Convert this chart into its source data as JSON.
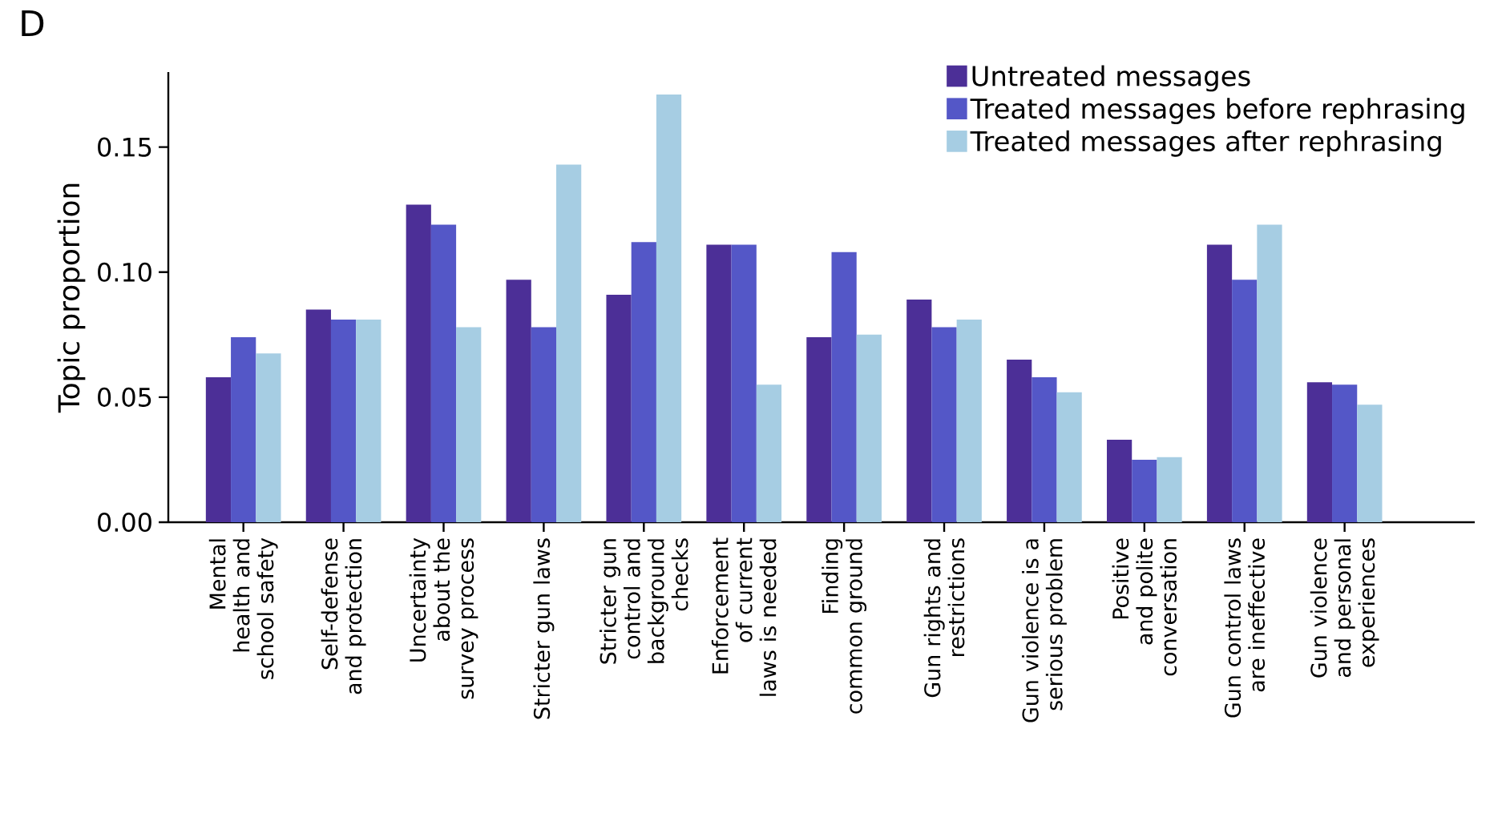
{
  "chart_data": {
    "type": "bar",
    "ylabel": "Topic proportion",
    "annotations": [
      "D"
    ],
    "categories": [
      "Mental health and school safety",
      "Self-defense and protection",
      "Uncertainty about the survey process",
      "Stricter gun laws",
      "Stricter gun control and background checks",
      "Enforcement of current laws is needed",
      "Finding common ground",
      "Gun rights and restrictions",
      "Gun violence is a serious problem",
      "Positive and polite conversation",
      "Gun control laws are ineffective",
      "Gun violence and personal experiences"
    ],
    "series": [
      {
        "name": "Untreated messages",
        "color": "#4c2f97",
        "values": [
          0.058,
          0.085,
          0.127,
          0.097,
          0.091,
          0.111,
          0.074,
          0.089,
          0.065,
          0.033,
          0.111,
          0.056
        ]
      },
      {
        "name": "Treated messages before rephrasing",
        "color": "#5457c7",
        "values": [
          0.074,
          0.081,
          0.119,
          0.078,
          0.112,
          0.111,
          0.108,
          0.078,
          0.058,
          0.025,
          0.097,
          0.055
        ]
      },
      {
        "name": "Treated messages after rephrasing",
        "color": "#a6cde3",
        "values": [
          0.0675,
          0.081,
          0.078,
          0.143,
          0.171,
          0.055,
          0.075,
          0.081,
          0.052,
          0.026,
          0.119,
          0.047
        ]
      }
    ],
    "ylim": [
      0,
      0.18
    ],
    "yticks": [
      {
        "value": 0,
        "label": "0.00"
      },
      0.05,
      {
        "value": 0.1,
        "label": "0.10"
      },
      0.15
    ],
    "grid": false,
    "legend": "top right"
  }
}
